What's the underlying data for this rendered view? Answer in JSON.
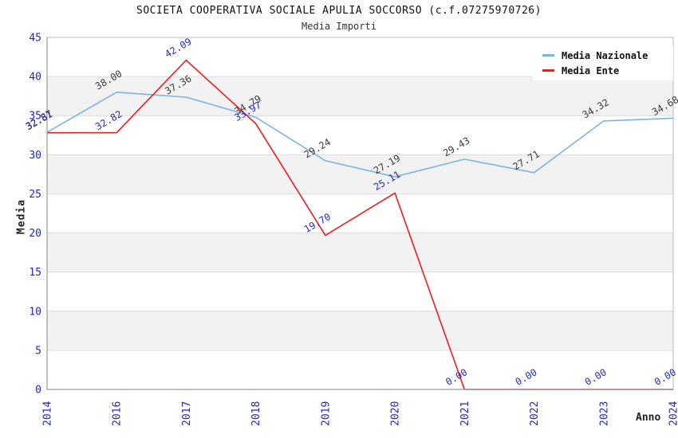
{
  "chart_data": {
    "type": "line",
    "title": "SOCIETA COOPERATIVA SOCIALE APULIA SOCCORSO (c.f.07275970726)",
    "subtitle": "Media Importi",
    "xlabel": "Anno",
    "ylabel": "Media",
    "categories": [
      "2014",
      "2016",
      "2017",
      "2018",
      "2019",
      "2020",
      "2021",
      "2022",
      "2023",
      "2024"
    ],
    "series": [
      {
        "name": "Media Nazionale",
        "color": "#7db2e5",
        "label_color": "#3a3a3a",
        "values": [
          32.87,
          38.0,
          37.36,
          34.79,
          29.24,
          27.19,
          29.43,
          27.71,
          34.32,
          34.68
        ]
      },
      {
        "name": "Media Ente",
        "color": "#ee1c1c",
        "label_color": "#2a2ac0",
        "values": [
          32.81,
          32.82,
          42.09,
          33.97,
          19.7,
          25.11,
          0.0,
          0.0,
          0.0,
          0.0
        ]
      }
    ],
    "ylim": [
      0,
      45
    ],
    "ytick_step": 5,
    "grid": true,
    "legend_position": "top-right",
    "band_colors": [
      "#ffffff",
      "#f2f2f2"
    ],
    "colors": {
      "tick": "#2424c4",
      "grid": "#dcdcdc",
      "border": "#b8b8b8",
      "axis": "#9a9a9a"
    }
  }
}
